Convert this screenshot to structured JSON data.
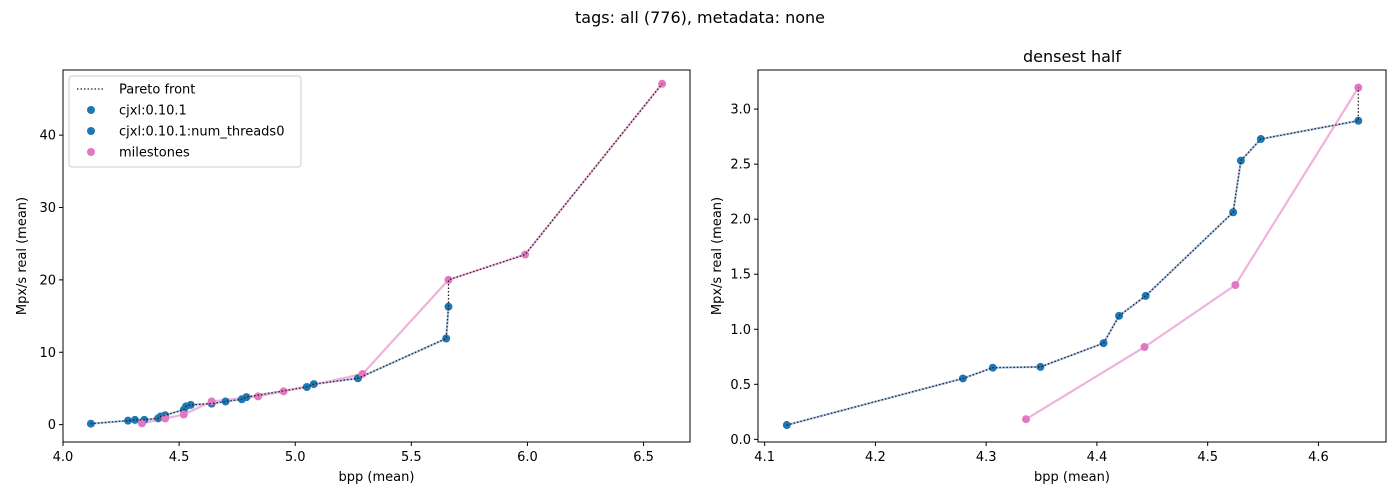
{
  "suptitle": "tags: all (776), metadata: none",
  "colors": {
    "cjxl": "#1f77b4",
    "cjxl_line": "#aec7e8",
    "milestones": "#e377c2",
    "milestones_line": "#f0b2dc",
    "pareto": "#222222"
  },
  "chart_data": [
    {
      "type": "scatter",
      "title": "",
      "xlabel": "bpp (mean)",
      "ylabel": "Mpx/s real (mean)",
      "xlim": [
        4.0,
        6.7
      ],
      "ylim": [
        -2.4,
        49.0
      ],
      "xticks": [
        4.0,
        4.5,
        5.0,
        5.5,
        6.0,
        6.5
      ],
      "xtick_labels": [
        "4.0",
        "4.5",
        "5.0",
        "5.5",
        "6.0",
        "6.5"
      ],
      "yticks": [
        0,
        10,
        20,
        30,
        40
      ],
      "ytick_labels": [
        "0",
        "10",
        "20",
        "30",
        "40"
      ],
      "grid": false,
      "legend": {
        "position": "top-left",
        "entries": [
          {
            "label": "Pareto front",
            "kind": "dotted"
          },
          {
            "label": "cjxl:0.10.1",
            "kind": "marker",
            "color_key": "cjxl"
          },
          {
            "label": "cjxl:0.10.1:num_threads0",
            "kind": "marker",
            "color_key": "cjxl"
          },
          {
            "label": "milestones",
            "kind": "marker",
            "color_key": "milestones"
          }
        ]
      },
      "series": [
        {
          "name": "cjxl:0.10.1",
          "color_key": "cjxl",
          "points": [
            [
              4.12,
              0.13
            ],
            [
              4.28,
              0.55
            ],
            [
              4.31,
              0.65
            ],
            [
              4.35,
              0.66
            ],
            [
              4.41,
              0.87
            ],
            [
              4.42,
              1.12
            ],
            [
              4.44,
              1.3
            ],
            [
              4.52,
              2.06
            ],
            [
              4.53,
              2.53
            ],
            [
              4.55,
              2.73
            ],
            [
              4.64,
              2.9
            ],
            [
              4.7,
              3.2
            ],
            [
              4.77,
              3.5
            ],
            [
              4.79,
              3.8
            ],
            [
              5.05,
              5.2
            ],
            [
              5.08,
              5.6
            ],
            [
              5.27,
              6.4
            ],
            [
              5.65,
              11.9
            ],
            [
              5.66,
              16.3
            ]
          ]
        },
        {
          "name": "milestones",
          "color_key": "milestones",
          "points": [
            [
              4.34,
              0.18
            ],
            [
              4.44,
              0.84
            ],
            [
              4.52,
              1.4
            ],
            [
              4.64,
              3.2
            ],
            [
              4.84,
              3.9
            ],
            [
              4.95,
              4.6
            ],
            [
              5.29,
              7.0
            ],
            [
              5.66,
              20.0
            ],
            [
              5.99,
              23.5
            ],
            [
              6.58,
              47.1
            ]
          ]
        }
      ],
      "pareto_front": [
        [
          4.12,
          0.13
        ],
        [
          4.28,
          0.55
        ],
        [
          4.31,
          0.65
        ],
        [
          4.35,
          0.66
        ],
        [
          4.41,
          0.87
        ],
        [
          4.42,
          1.12
        ],
        [
          4.44,
          1.3
        ],
        [
          4.52,
          2.06
        ],
        [
          4.53,
          2.53
        ],
        [
          4.55,
          2.73
        ],
        [
          4.64,
          2.9
        ],
        [
          4.7,
          3.2
        ],
        [
          4.77,
          3.5
        ],
        [
          4.79,
          3.8
        ],
        [
          5.05,
          5.2
        ],
        [
          5.08,
          5.6
        ],
        [
          5.27,
          6.4
        ],
        [
          5.65,
          11.9
        ],
        [
          5.66,
          16.3
        ],
        [
          5.66,
          20.0
        ],
        [
          5.99,
          23.5
        ],
        [
          6.58,
          47.1
        ]
      ]
    },
    {
      "type": "scatter",
      "title": "densest half",
      "xlabel": "bpp (mean)",
      "ylabel": "Mpx/s real (mean)",
      "xlim": [
        4.094,
        4.661
      ],
      "ylim": [
        -0.024,
        3.355
      ],
      "xticks": [
        4.1,
        4.2,
        4.3,
        4.4,
        4.5,
        4.6
      ],
      "xtick_labels": [
        "4.1",
        "4.2",
        "4.3",
        "4.4",
        "4.5",
        "4.6"
      ],
      "yticks": [
        0.0,
        0.5,
        1.0,
        1.5,
        2.0,
        2.5,
        3.0
      ],
      "ytick_labels": [
        "0.0",
        "0.5",
        "1.0",
        "1.5",
        "2.0",
        "2.5",
        "3.0"
      ],
      "grid": false,
      "series": [
        {
          "name": "cjxl:0.10.1",
          "color_key": "cjxl",
          "points": [
            [
              4.12,
              0.13
            ],
            [
              4.279,
              0.553
            ],
            [
              4.306,
              0.651
            ],
            [
              4.349,
              0.658
            ],
            [
              4.406,
              0.874
            ],
            [
              4.42,
              1.122
            ],
            [
              4.444,
              1.303
            ],
            [
              4.523,
              2.063
            ],
            [
              4.53,
              2.532
            ],
            [
              4.548,
              2.728
            ],
            [
              4.636,
              2.894
            ]
          ]
        },
        {
          "name": "milestones",
          "color_key": "milestones",
          "points": [
            [
              4.336,
              0.183
            ],
            [
              4.443,
              0.839
            ],
            [
              4.525,
              1.402
            ],
            [
              4.636,
              3.195
            ]
          ]
        }
      ],
      "pareto_front": [
        [
          4.12,
          0.13
        ],
        [
          4.279,
          0.553
        ],
        [
          4.306,
          0.651
        ],
        [
          4.349,
          0.658
        ],
        [
          4.406,
          0.874
        ],
        [
          4.42,
          1.122
        ],
        [
          4.444,
          1.303
        ],
        [
          4.523,
          2.063
        ],
        [
          4.53,
          2.532
        ],
        [
          4.548,
          2.728
        ],
        [
          4.636,
          2.894
        ],
        [
          4.636,
          3.195
        ]
      ]
    }
  ]
}
